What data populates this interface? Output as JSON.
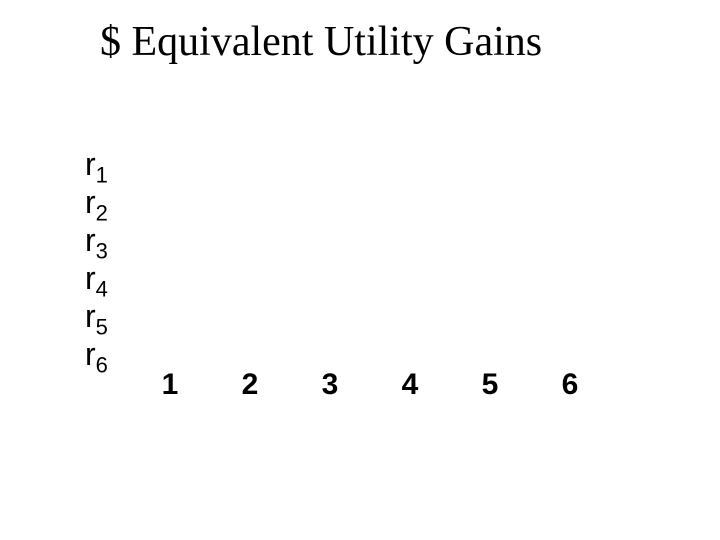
{
  "title": "$ Equivalent Utility Gains",
  "rows": {
    "label_prefix": "r",
    "items": [
      {
        "sub": "1"
      },
      {
        "sub": "2"
      },
      {
        "sub": "3"
      },
      {
        "sub": "4"
      },
      {
        "sub": "5"
      },
      {
        "sub": "6"
      }
    ]
  },
  "cols": {
    "items": [
      "1",
      "2",
      "3",
      "4",
      "5",
      "6"
    ]
  },
  "style": {
    "background_color": "#ffffff",
    "text_color": "#000000",
    "title_fontsize": 42,
    "row_label_fontsize": 32,
    "row_sub_fontsize": 22,
    "col_label_fontsize": 30,
    "col_label_fontweight": "bold",
    "row_line_height": 38,
    "col_gap": 50
  }
}
